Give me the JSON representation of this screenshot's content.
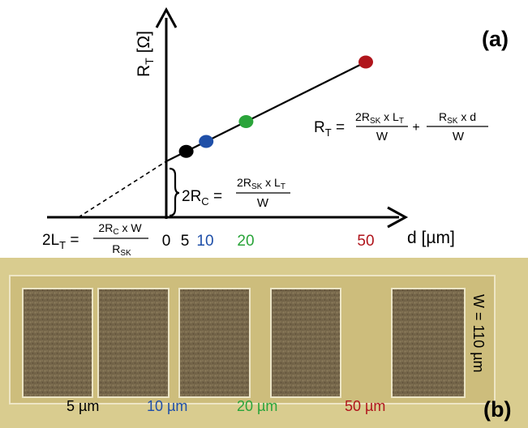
{
  "panel_a": {
    "label": "(a)",
    "y_axis_label": {
      "main": "R",
      "sub": "T",
      "unit": " [Ω]"
    },
    "x_axis_label": "d [µm]",
    "ticks": [
      {
        "text": "0",
        "color": "#000000"
      },
      {
        "text": "5",
        "color": "#000000"
      },
      {
        "text": "10",
        "color": "#1f4fa8"
      },
      {
        "text": "20",
        "color": "#2aa43a"
      },
      {
        "text": "50",
        "color": "#b0151c"
      }
    ],
    "points": [
      {
        "d": 5,
        "color": "#000000"
      },
      {
        "d": 10,
        "color": "#1f4fa8"
      },
      {
        "d": 20,
        "color": "#2aa43a"
      },
      {
        "d": 50,
        "color": "#b0151c"
      }
    ],
    "formula_rt": {
      "lhs_main": "R",
      "lhs_sub": "T",
      "eq": " =",
      "f1_num_a": "2R",
      "f1_num_sub": "SK",
      "f1_num_b": " x L",
      "f1_num_sub2": "T",
      "f1_den": "W",
      "plus": "+",
      "f2_num_a": "R",
      "f2_num_sub": "SK",
      "f2_num_b": " x d",
      "f2_den": "W"
    },
    "formula_rc": {
      "lhs_a": "2R",
      "lhs_sub": "C",
      "eq": " =",
      "num_a": "2R",
      "num_sub": "SK",
      "num_b": " x L",
      "num_sub2": "T",
      "den": "W"
    },
    "formula_lt": {
      "lhs_a": "2L",
      "lhs_sub": "T",
      "eq": " =",
      "num_a": "2R",
      "num_sub": "C",
      "num_b": " x W",
      "den_a": "R",
      "den_sub": "SK"
    }
  },
  "panel_b": {
    "label": "(b)",
    "width_label": "W = 110 µm",
    "gaps": [
      {
        "text": "5 µm",
        "color": "#000000"
      },
      {
        "text": "10 µm",
        "color": "#1f4fa8"
      },
      {
        "text": "20 µm",
        "color": "#2aa43a"
      },
      {
        "text": "50 µm",
        "color": "#b0151c"
      }
    ],
    "colors": {
      "background": "#d9cc8f",
      "pad": "#7a6a4c",
      "pad_border": "#e8e1c2"
    }
  }
}
